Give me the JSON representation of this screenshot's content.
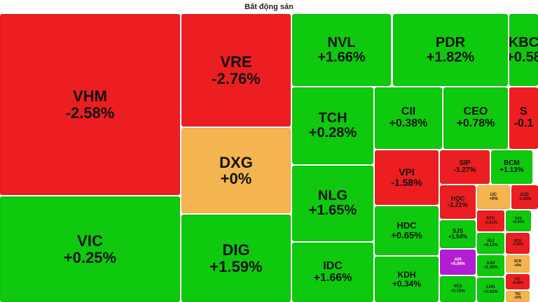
{
  "header": {
    "title": "Bất động sản"
  },
  "colors": {
    "up": "#0ec90e",
    "down": "#ec1e21",
    "flat": "#f4b44f",
    "ceiling": "#b51dd5"
  },
  "tiles": [
    {
      "ticker": "VHM",
      "change": "-2.58%",
      "status": "down"
    },
    {
      "ticker": "VIC",
      "change": "+0.25%",
      "status": "up"
    },
    {
      "ticker": "VRE",
      "change": "-2.76%",
      "status": "down"
    },
    {
      "ticker": "DXG",
      "change": "+0%",
      "status": "flat"
    },
    {
      "ticker": "DIG",
      "change": "+1.59%",
      "status": "up"
    },
    {
      "ticker": "NVL",
      "change": "+1.66%",
      "status": "up"
    },
    {
      "ticker": "PDR",
      "change": "+1.82%",
      "status": "up"
    },
    {
      "ticker": "KBC",
      "change": "+0.58",
      "status": "up"
    },
    {
      "ticker": "TCH",
      "change": "+0.28%",
      "status": "up"
    },
    {
      "ticker": "NLG",
      "change": "+1.65%",
      "status": "up"
    },
    {
      "ticker": "IDC",
      "change": "+1.66%",
      "status": "up"
    },
    {
      "ticker": "CII",
      "change": "+0.38%",
      "status": "up"
    },
    {
      "ticker": "CEO",
      "change": "+0.78%",
      "status": "up"
    },
    {
      "ticker": "S",
      "change": "-0.1",
      "status": "down"
    },
    {
      "ticker": "VPI",
      "change": "-1.58%",
      "status": "down"
    },
    {
      "ticker": "HDC",
      "change": "+0.65%",
      "status": "up"
    },
    {
      "ticker": "KDH",
      "change": "+0.34%",
      "status": "up"
    },
    {
      "ticker": "SIP",
      "change": "-1.27%",
      "status": "down"
    },
    {
      "ticker": "BCM",
      "change": "+1.13%",
      "status": "up"
    },
    {
      "ticker": "HQC",
      "change": "-1.21%",
      "status": "down"
    },
    {
      "ticker": "IJC",
      "change": "+0%",
      "status": "flat"
    },
    {
      "ticker": "D2D",
      "change": "-1.45%",
      "status": "down"
    },
    {
      "ticker": "SJS",
      "change": "+1.54%",
      "status": "up"
    },
    {
      "ticker": "NTC",
      "change": "-1.01%",
      "status": "down"
    },
    {
      "ticker": "DXS",
      "change": "+0.91%",
      "status": "up"
    },
    {
      "ticker": "API",
      "change": "+9.09%",
      "status": "ceiling"
    },
    {
      "ticker": "IDJ",
      "change": "+6.12%",
      "status": "up"
    },
    {
      "ticker": "QCG",
      "change": "-0.43%",
      "status": "down"
    },
    {
      "ticker": "SCR",
      "change": "+0%",
      "status": "flat"
    },
    {
      "ticker": "AAV",
      "change": "+2.35%",
      "status": "up"
    },
    {
      "ticker": "ITC",
      "change": "-0.41%",
      "status": "down"
    },
    {
      "ticker": "VC3",
      "change": "+0.72%",
      "status": "up"
    },
    {
      "ticker": "LHG",
      "change": "+0.62%",
      "status": "up"
    },
    {
      "ticker": "TIG",
      "change": "+0%",
      "status": "flat"
    }
  ]
}
